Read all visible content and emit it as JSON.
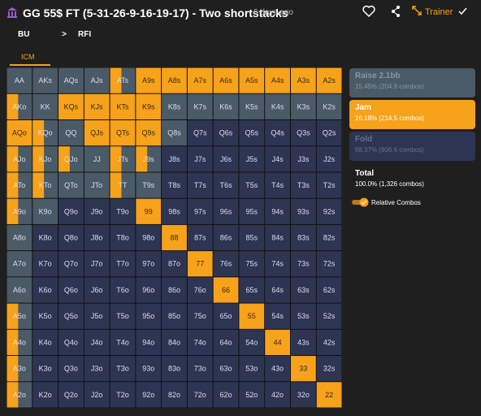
{
  "header": {
    "title": "GG 55$ FT (5-31-26-9-16-19-17) - Two shortstacks",
    "time": "6 days ago",
    "trainer": "Trainer"
  },
  "nav": {
    "position": "BU",
    "action": "RFI",
    "tab": "ICM"
  },
  "grid": {
    "rows": [
      [
        "AA",
        "AKs",
        "AQs",
        "AJs",
        "ATs",
        "A9s",
        "A8s",
        "A7s",
        "A6s",
        "A5s",
        "A4s",
        "A3s",
        "A2s"
      ],
      [
        "AKo",
        "KK",
        "KQs",
        "KJs",
        "KTs",
        "K9s",
        "K8s",
        "K7s",
        "K6s",
        "K5s",
        "K4s",
        "K3s",
        "K2s"
      ],
      [
        "AQo",
        "KQo",
        "QQ",
        "QJs",
        "QTs",
        "Q9s",
        "Q8s",
        "Q7s",
        "Q6s",
        "Q5s",
        "Q4s",
        "Q3s",
        "Q2s"
      ],
      [
        "AJo",
        "KJo",
        "QJo",
        "JJ",
        "JTs",
        "J9s",
        "J8s",
        "J7s",
        "J6s",
        "J5s",
        "J4s",
        "J3s",
        "J2s"
      ],
      [
        "ATo",
        "KTo",
        "QTo",
        "JTo",
        "TT",
        "T9s",
        "T8s",
        "T7s",
        "T6s",
        "T5s",
        "T4s",
        "T3s",
        "T2s"
      ],
      [
        "A9o",
        "K9o",
        "Q9o",
        "J9o",
        "T9o",
        "99",
        "98s",
        "97s",
        "96s",
        "95s",
        "94s",
        "93s",
        "92s"
      ],
      [
        "A8o",
        "K8o",
        "Q8o",
        "J8o",
        "T8o",
        "98o",
        "88",
        "87s",
        "86s",
        "85s",
        "84s",
        "83s",
        "82s"
      ],
      [
        "A7o",
        "K7o",
        "Q7o",
        "J7o",
        "T7o",
        "97o",
        "87o",
        "77",
        "76s",
        "75s",
        "74s",
        "73s",
        "72s"
      ],
      [
        "A6o",
        "K6o",
        "Q6o",
        "J6o",
        "T6o",
        "96o",
        "86o",
        "76o",
        "66",
        "65s",
        "64s",
        "63s",
        "62s"
      ],
      [
        "A5o",
        "K5o",
        "Q5o",
        "J5o",
        "T5o",
        "95o",
        "85o",
        "75o",
        "65o",
        "55",
        "54s",
        "53s",
        "52s"
      ],
      [
        "A4o",
        "K4o",
        "Q4o",
        "J4o",
        "T4o",
        "94o",
        "84o",
        "74o",
        "64o",
        "54o",
        "44",
        "43s",
        "42s"
      ],
      [
        "A3o",
        "K3o",
        "Q3o",
        "J3o",
        "T3o",
        "93o",
        "83o",
        "73o",
        "63o",
        "53o",
        "43o",
        "33",
        "32s"
      ],
      [
        "A2o",
        "K2o",
        "Q2o",
        "J2o",
        "T2o",
        "92o",
        "82o",
        "72o",
        "62o",
        "52o",
        "42o",
        "32o",
        "22"
      ]
    ]
  },
  "actions": [
    {
      "name": "Raise 2.1bb",
      "stat": "15.45% (204.9 combos)"
    },
    {
      "name": "Jam",
      "stat": "16.18% (214.5 combos)"
    },
    {
      "name": "Fold",
      "stat": "68.37% (906.6 combos)"
    }
  ],
  "total": {
    "label": "Total",
    "stat": "100.0% (1,326 combos)"
  },
  "toggle": "Relative Combos"
}
